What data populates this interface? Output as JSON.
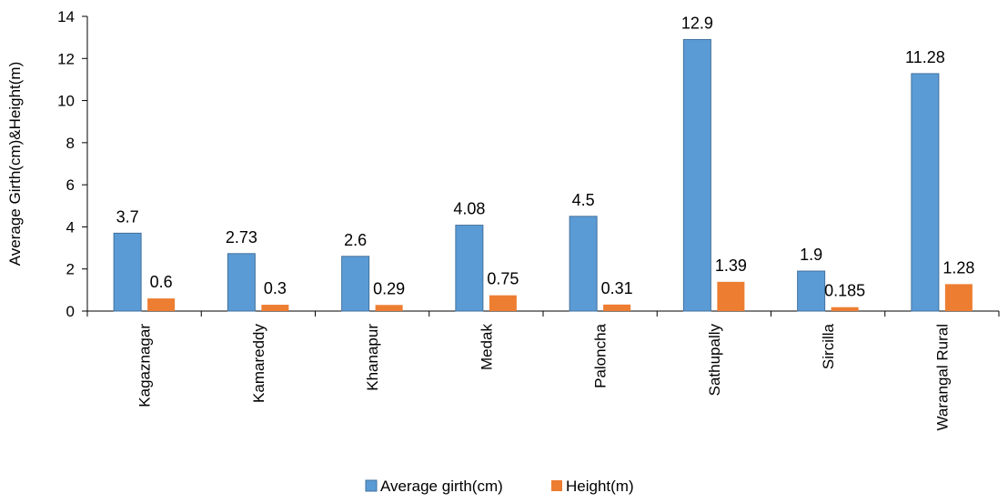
{
  "chart_data": {
    "type": "bar",
    "title": "",
    "xlabel": "",
    "ylabel": "Average Girth(cm)&Height(m)",
    "ylim": [
      0,
      14
    ],
    "yticks": [
      0,
      2,
      4,
      6,
      8,
      10,
      12,
      14
    ],
    "grid": false,
    "legend_position": "bottom",
    "categories": [
      "Kagaznagar",
      "Kamareddy",
      "Khanapur",
      "Medak",
      "Paloncha",
      "Sathupally",
      "Sircilla",
      "Warangal Rural"
    ],
    "series": [
      {
        "name": "Average girth(cm)",
        "color": "#5B9BD5",
        "values": [
          3.7,
          2.73,
          2.6,
          4.08,
          4.5,
          12.9,
          1.9,
          11.28
        ],
        "labels": [
          "3.7",
          "2.73",
          "2.6",
          "4.08",
          "4.5",
          "12.9",
          "1.9",
          "11.28"
        ]
      },
      {
        "name": "Height(m)",
        "color": "#ED7D31",
        "values": [
          0.6,
          0.3,
          0.29,
          0.75,
          0.31,
          1.39,
          0.185,
          1.28
        ],
        "labels": [
          "0.6",
          "0.3",
          "0.29",
          "0.75",
          "0.31",
          "1.39",
          "0.185",
          "1.28"
        ]
      }
    ]
  }
}
